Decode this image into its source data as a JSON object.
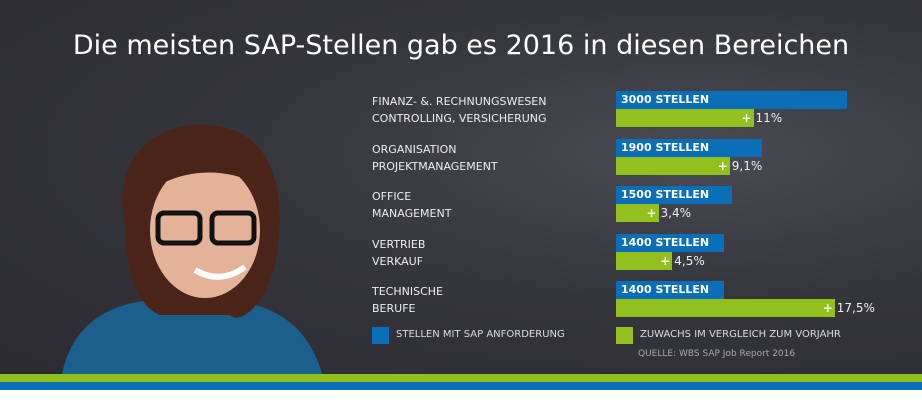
{
  "chart_data": {
    "type": "bar",
    "title": "Die meisten SAP-Stellen gab es 2016 in diesen Bereichen",
    "categories": [
      [
        "FINANZ- &. RECHNUNGSWESEN",
        "CONTROLLING, VERSICHERUNG"
      ],
      [
        "ORGANISATION",
        "PROJEKTMANAGEMENT"
      ],
      [
        "OFFICE",
        "MANAGEMENT"
      ],
      [
        "VERTRIEB",
        "VERKAUF"
      ],
      [
        "TECHNISCHE",
        "BERUFE"
      ]
    ],
    "series": [
      {
        "name": "STELLEN MIT SAP ANFORDERUNG",
        "color": "#0a6fb8",
        "values": [
          3000,
          1900,
          1500,
          1400,
          1400
        ],
        "labels": [
          "3000 STELLEN",
          "1900 STELLEN",
          "1500 STELLEN",
          "1400 STELLEN",
          "1400 STELLEN"
        ]
      },
      {
        "name": "ZUWACHS IM VERGLEICH ZUM VORJAHR",
        "color": "#92c01f",
        "values": [
          11,
          9.1,
          3.4,
          4.5,
          17.5
        ],
        "labels": [
          "11%",
          "9,1%",
          "3,4%",
          "4,5%",
          "17,5%"
        ]
      }
    ],
    "plus": "+",
    "source": "QUELLE: WBS SAP Job Report 2016"
  }
}
